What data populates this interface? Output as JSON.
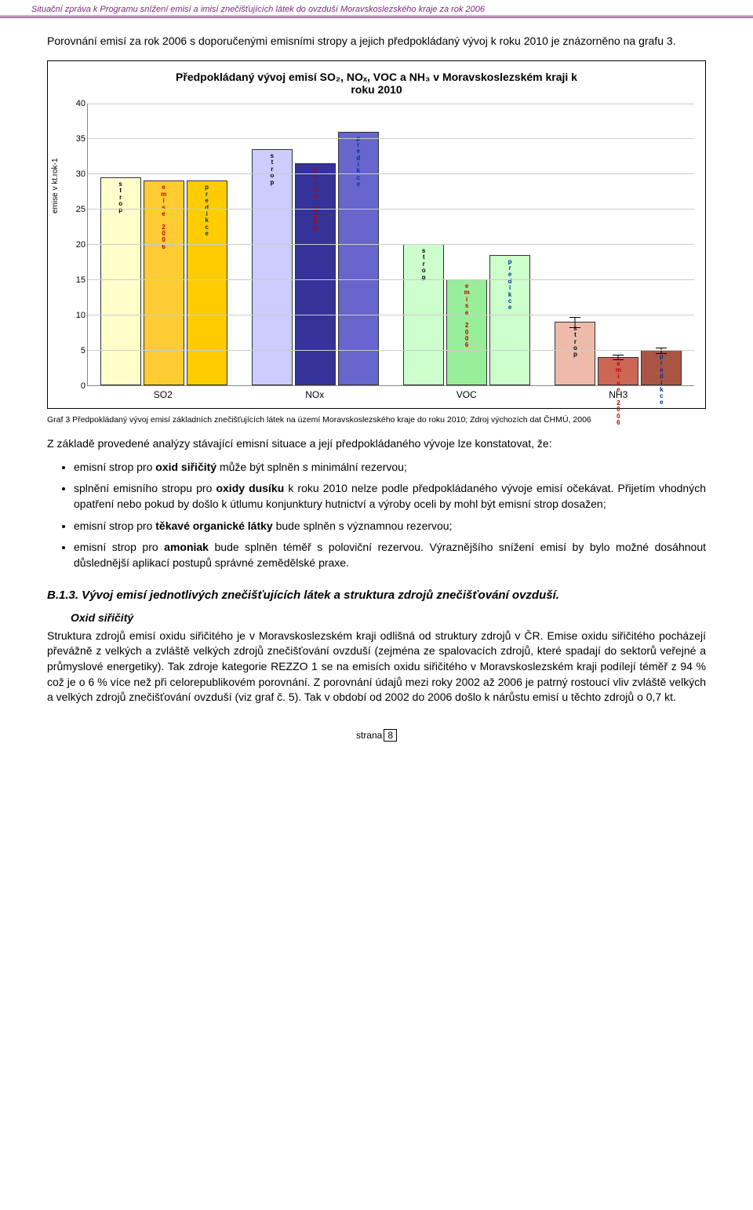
{
  "header": {
    "text": "Situační zpráva k Programu snížení emisí a imisí znečišťujících látek do ovzduší Moravskoslezského kraje za rok 2006"
  },
  "intro": {
    "text": "Porovnání emisí za rok 2006 s doporučenými emisními stropy a jejich předpokládaný vývoj k roku 2010 je znázorněno na grafu 3."
  },
  "chart": {
    "type": "grouped-bar",
    "title_line1": "Předpokládaný vývoj emisí SO₂, NOₓ, VOC a NH₃ v Moravskoslezském kraji k",
    "title_line2": "roku 2010",
    "y_label": "emise v kt.rok-1",
    "ylim": [
      0,
      40
    ],
    "ytick_step": 5,
    "background_color": "#ffffff",
    "grid_color": "#cccccc",
    "bar_border": "#333333",
    "categories": [
      "SO2",
      "NOx",
      "VOC",
      "NH3"
    ],
    "series_labels": {
      "strop": "s\nt\nr\no\np",
      "emise": "e\nm\ni\ns\ne\n\n2\n0\n0\n6",
      "predikce": "p\nr\ne\nd\ni\nk\nc\ne"
    },
    "label_colors": {
      "strop": "#000000",
      "emise": "#c00000",
      "predikce": "#003399"
    },
    "groups": [
      {
        "name": "SO2",
        "colors": {
          "strop": "#ffffcc",
          "emise": "#ffcc33",
          "predikce": "#ffcc00"
        },
        "values": {
          "strop": 29.5,
          "emise": 29,
          "predikce": 29
        },
        "errors": {
          "strop": 0,
          "emise": 0,
          "predikce": 0
        }
      },
      {
        "name": "NOx",
        "colors": {
          "strop": "#ccccff",
          "emise": "#333399",
          "predikce": "#6666cc"
        },
        "values": {
          "strop": 33.5,
          "emise": 31.5,
          "predikce": 36
        },
        "errors": {
          "strop": 0,
          "emise": 0,
          "predikce": 0
        }
      },
      {
        "name": "VOC",
        "colors": {
          "strop": "#ccffcc",
          "emise": "#99ee99",
          "predikce": "#ccffcc"
        },
        "values": {
          "strop": 20,
          "emise": 15,
          "predikce": 18.5
        },
        "errors": {
          "strop": 0,
          "emise": 0,
          "predikce": 0
        }
      },
      {
        "name": "NH3",
        "colors": {
          "strop": "#eebbaa",
          "emise": "#cc6655",
          "predikce": "#aa5544"
        },
        "values": {
          "strop": 9,
          "emise": 4,
          "predikce": 5
        },
        "errors": {
          "strop": 3,
          "emise": 3,
          "predikce": 3
        }
      }
    ]
  },
  "caption": {
    "text": "Graf 3 Předpokládaný vývoj emisí základních znečišťujících látek na území Moravskoslezského kraje do roku 2010; Zdroj výchozích dat ČHMÚ, 2006"
  },
  "para_after_caption": {
    "text": "Z základě provedené analýzy stávající emisní situace a její předpokládaného vývoje lze konstatovat, že:"
  },
  "bullets": [
    {
      "html": "emisní strop pro <b>oxid siřičitý</b> může být splněn s minimální rezervou;"
    },
    {
      "html": "splnění emisního stropu pro <b>oxidy dusíku</b> k roku 2010 nelze podle předpokládaného vývoje emisí očekávat. Přijetím vhodných opatření nebo pokud by došlo k útlumu konjunktury hutnictví a výroby oceli by mohl být emisní strop dosažen;"
    },
    {
      "html": "emisní strop pro <b>těkavé organické látky</b> bude splněn s významnou rezervou;"
    },
    {
      "html": "emisní strop pro <b>amoniak</b> bude splněn téměř s poloviční rezervou. Výraznějšího snížení emisí by bylo možné dosáhnout důslednější aplikací postupů správné zemědělské praxe."
    }
  ],
  "section": {
    "heading": "B.1.3. Vývoj emisí jednotlivých znečišťujících látek a struktura zdrojů znečišťování ovzduší.",
    "subheading": "Oxid siřičitý",
    "body": "Struktura zdrojů emisí oxidu siřičitého je v Moravskoslezském kraji odlišná od struktury zdrojů v ČR. Emise oxidu siřičitého pocházejí převážně z velkých a zvláště velkých zdrojů znečišťování ovzduší (zejména ze spalovacích zdrojů, které spadají do sektorů veřejné a průmyslové energetiky). Tak zdroje kategorie REZZO 1 se na emisích oxidu siřičitého v Moravskoslezském kraji podílejí téměř z 94 % což je o 6 % více než při celorepublikovém porovnání. Z porovnání údajů mezi roky 2002 až 2006 je patrný rostoucí vliv zvláště velkých a velkých zdrojů znečišťování ovzduší (viz graf č. 5). Tak v období od 2002 do 2006 došlo k nárůstu emisí u těchto zdrojů o 0,7 kt."
  },
  "footer": {
    "label": "strana",
    "page": "8"
  }
}
